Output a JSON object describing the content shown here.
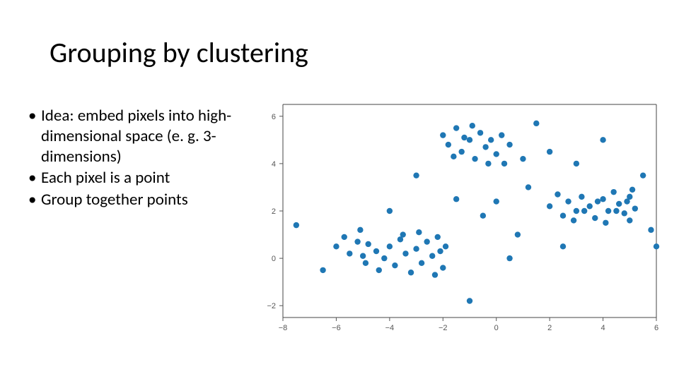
{
  "title": "Grouping by clustering",
  "bullets": [
    "Idea: embed pixels into high-dimensional space (e. g. 3-dimensions)",
    "Each pixel is a point",
    "Group together points"
  ],
  "chart": {
    "type": "scatter",
    "background_color": "#ffffff",
    "spine_color": "#444444",
    "tick_color": "#555555",
    "tick_label_color": "#555555",
    "tick_fontsize": 11,
    "marker_color": "#1f77b4",
    "marker_size": 4.2,
    "xlim": [
      -8,
      6
    ],
    "ylim": [
      -2.5,
      6.5
    ],
    "xticks": [
      -8,
      -6,
      -4,
      -2,
      0,
      2,
      4,
      6
    ],
    "yticks": [
      -2,
      0,
      2,
      4,
      6
    ],
    "xtick_labels": [
      "−8",
      "−6",
      "−4",
      "−2",
      "0",
      "2",
      "4",
      "6"
    ],
    "ytick_labels": [
      "−2",
      "0",
      "2",
      "4",
      "6"
    ],
    "points": [
      [
        -6.0,
        0.5
      ],
      [
        -5.7,
        0.9
      ],
      [
        -5.5,
        0.2
      ],
      [
        -5.2,
        0.7
      ],
      [
        -5.0,
        0.1
      ],
      [
        -4.8,
        0.6
      ],
      [
        -4.5,
        0.3
      ],
      [
        -4.2,
        0.0
      ],
      [
        -4.0,
        0.5
      ],
      [
        -3.8,
        -0.3
      ],
      [
        -3.6,
        0.8
      ],
      [
        -3.4,
        0.2
      ],
      [
        -3.2,
        -0.6
      ],
      [
        -3.0,
        0.4
      ],
      [
        -2.8,
        -0.2
      ],
      [
        -2.6,
        0.7
      ],
      [
        -2.4,
        0.1
      ],
      [
        -2.2,
        0.9
      ],
      [
        -2.0,
        -0.4
      ],
      [
        -1.9,
        0.5
      ],
      [
        -5.1,
        1.2
      ],
      [
        -4.4,
        -0.5
      ],
      [
        -3.5,
        1.0
      ],
      [
        -2.9,
        1.1
      ],
      [
        -2.3,
        -0.7
      ],
      [
        -2.1,
        0.3
      ],
      [
        -4.9,
        -0.2
      ],
      [
        -2.0,
        5.2
      ],
      [
        -1.8,
        4.8
      ],
      [
        -1.5,
        5.5
      ],
      [
        -1.3,
        4.5
      ],
      [
        -1.0,
        5.0
      ],
      [
        -0.8,
        4.2
      ],
      [
        -0.6,
        5.3
      ],
      [
        -0.4,
        4.7
      ],
      [
        -0.2,
        5.0
      ],
      [
        0.0,
        4.4
      ],
      [
        0.2,
        5.2
      ],
      [
        0.5,
        4.8
      ],
      [
        -1.6,
        4.3
      ],
      [
        -0.9,
        5.6
      ],
      [
        0.3,
        4.0
      ],
      [
        -1.2,
        5.1
      ],
      [
        -0.3,
        4.0
      ],
      [
        2.0,
        2.2
      ],
      [
        2.3,
        2.7
      ],
      [
        2.5,
        1.8
      ],
      [
        2.7,
        2.4
      ],
      [
        3.0,
        2.0
      ],
      [
        3.2,
        2.6
      ],
      [
        3.5,
        2.2
      ],
      [
        3.7,
        1.7
      ],
      [
        4.0,
        2.5
      ],
      [
        4.2,
        2.0
      ],
      [
        4.4,
        2.8
      ],
      [
        4.6,
        2.3
      ],
      [
        4.8,
        1.9
      ],
      [
        5.0,
        2.6
      ],
      [
        5.2,
        2.1
      ],
      [
        5.0,
        1.6
      ],
      [
        4.5,
        2.0
      ],
      [
        3.8,
        2.4
      ],
      [
        2.9,
        1.6
      ],
      [
        4.9,
        2.4
      ],
      [
        3.3,
        2.0
      ],
      [
        4.1,
        1.5
      ],
      [
        5.1,
        2.9
      ],
      [
        -7.5,
        1.4
      ],
      [
        -1.0,
        -1.8
      ],
      [
        1.5,
        5.7
      ],
      [
        4.0,
        5.0
      ],
      [
        6.0,
        0.5
      ],
      [
        0.8,
        1.0
      ],
      [
        -3.0,
        3.5
      ],
      [
        1.2,
        3.0
      ],
      [
        2.0,
        4.5
      ],
      [
        0.0,
        2.4
      ],
      [
        -0.5,
        1.8
      ],
      [
        3.0,
        4.0
      ],
      [
        -6.5,
        -0.5
      ],
      [
        5.5,
        3.5
      ],
      [
        -1.5,
        2.5
      ],
      [
        0.5,
        0.0
      ],
      [
        2.5,
        0.5
      ],
      [
        -4.0,
        2.0
      ],
      [
        5.8,
        1.2
      ],
      [
        1.0,
        4.2
      ]
    ]
  }
}
